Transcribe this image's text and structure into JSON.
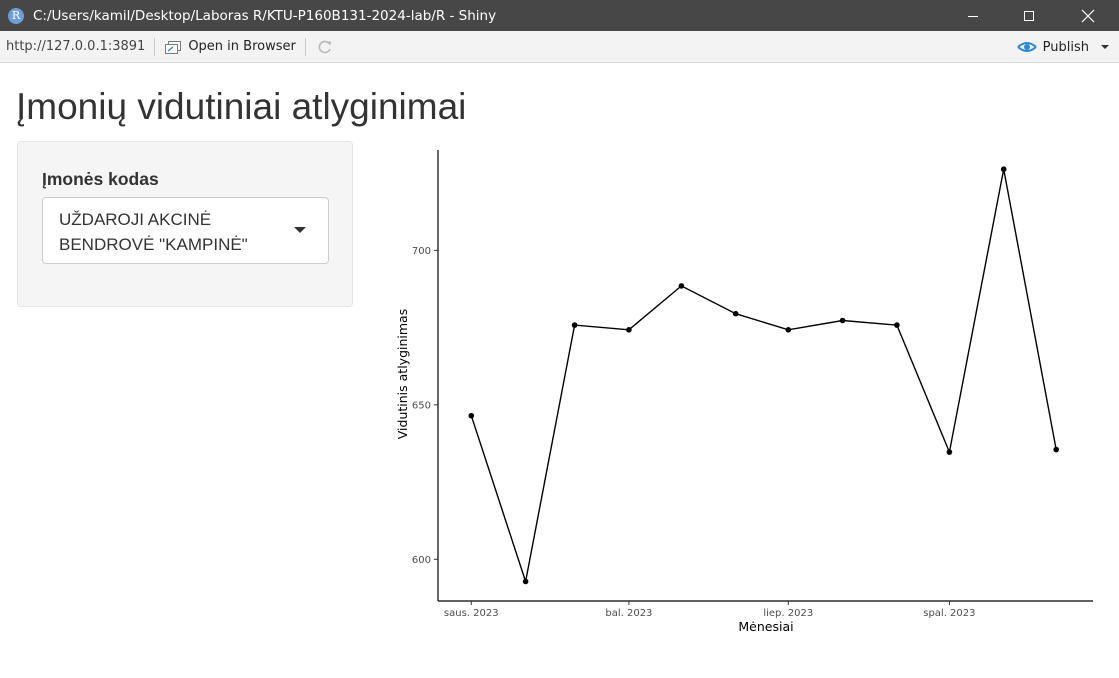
{
  "window": {
    "app_icon_letter": "R",
    "title": "C:/Users/kamil/Desktop/Laboras R/KTU-P160B131-2024-lab/R - Shiny"
  },
  "toolbar": {
    "url": "http://127.0.0.1:3891",
    "open_in_browser": "Open in Browser",
    "publish": "Publish"
  },
  "page": {
    "title": "Įmonių vidutiniai atlyginimai"
  },
  "sidebar": {
    "label": "Įmonės kodas",
    "selected_value": "UŽDAROJI AKCINĖ BENDROVĖ \"KAMPINĖ\""
  },
  "chart_data": {
    "type": "line",
    "xlabel": "Mėnesiai",
    "ylabel": "Vidutinis atlyginimas",
    "x": [
      "2023-01",
      "2023-02",
      "2023-03",
      "2023-04",
      "2023-05",
      "2023-06",
      "2023-07",
      "2023-08",
      "2023-09",
      "2023-10",
      "2023-11",
      "2023-12"
    ],
    "values": [
      646.5,
      592.8,
      675.8,
      674.3,
      688.5,
      679.5,
      674.3,
      677.3,
      675.8,
      634.7,
      726.3,
      635.5
    ],
    "x_ticks": [
      {
        "x": "2023-01",
        "label": "saus. 2023"
      },
      {
        "x": "2023-04",
        "label": "bal. 2023"
      },
      {
        "x": "2023-07",
        "label": "liep. 2023"
      },
      {
        "x": "2023-10",
        "label": "spal. 2023"
      }
    ],
    "y_ticks": [
      600,
      650,
      700
    ],
    "ylim": [
      586.5,
      732.5
    ],
    "xlim": [
      "2022-12-13",
      "2023-12-22"
    ],
    "grid": false,
    "line_color": "#000000"
  }
}
